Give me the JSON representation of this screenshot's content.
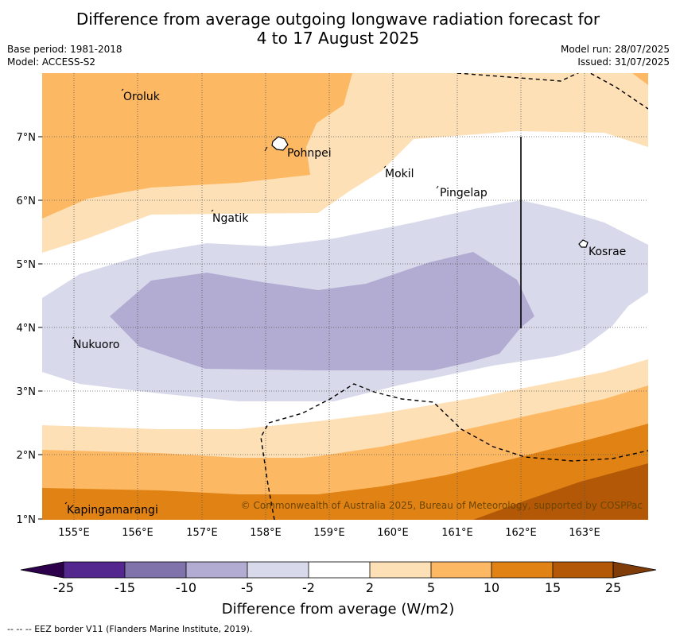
{
  "title_line1": "Difference from average outgoing longwave radiation forecast for",
  "title_line2": "4 to 17 August 2025",
  "base_period": "Base period: 1981-2018",
  "model": "Model: ACCESS-S2",
  "model_run": "Model run: 28/07/2025",
  "issued": "Issued: 31/07/2025",
  "copyright": "© Commonwealth of Australia 2025, Bureau of Meteorology, supported by COSPPac",
  "colorbar_label": "Difference from average (W/m2)",
  "footer": "--  --  -- EEZ border V11 (Flanders Marine Institute, 2019).",
  "map": {
    "lon_range": [
      154.5,
      164.0
    ],
    "lat_range": [
      1.0,
      8.0
    ],
    "lon_ticks": [
      "155°E",
      "156°E",
      "157°E",
      "158°E",
      "159°E",
      "160°E",
      "161°E",
      "162°E",
      "163°E"
    ],
    "lat_ticks": [
      "7°N",
      "6°N",
      "5°N",
      "4°N",
      "3°N",
      "2°N",
      "1°N"
    ],
    "places": [
      {
        "name": "Oroluk",
        "lon": 155.7,
        "lat": 7.7
      },
      {
        "name": "Pohnpei",
        "lon": 158.2,
        "lat": 6.85
      },
      {
        "name": "Mokil",
        "lon": 159.8,
        "lat": 6.5
      },
      {
        "name": "Pingelap",
        "lon": 160.7,
        "lat": 6.2
      },
      {
        "name": "Ngatik",
        "lon": 157.15,
        "lat": 5.8
      },
      {
        "name": "Kosrae",
        "lon": 163.0,
        "lat": 5.3
      },
      {
        "name": "Nukuoro",
        "lon": 154.85,
        "lat": 3.85
      },
      {
        "name": "Kapingamarangi",
        "lon": 154.9,
        "lat": 1.25
      }
    ]
  },
  "colorbar": {
    "ticks": [
      "-25",
      "-15",
      "-10",
      "-5",
      "-2",
      "2",
      "5",
      "10",
      "15",
      "25"
    ],
    "colors": [
      "#54278f",
      "#8073ac",
      "#b2abd2",
      "#d8daeb",
      "#ffffff",
      "#fee0b6",
      "#fdb863",
      "#e08214",
      "#b35806"
    ],
    "under_color": "#2d004b",
    "over_color": "#7f3b08"
  }
}
